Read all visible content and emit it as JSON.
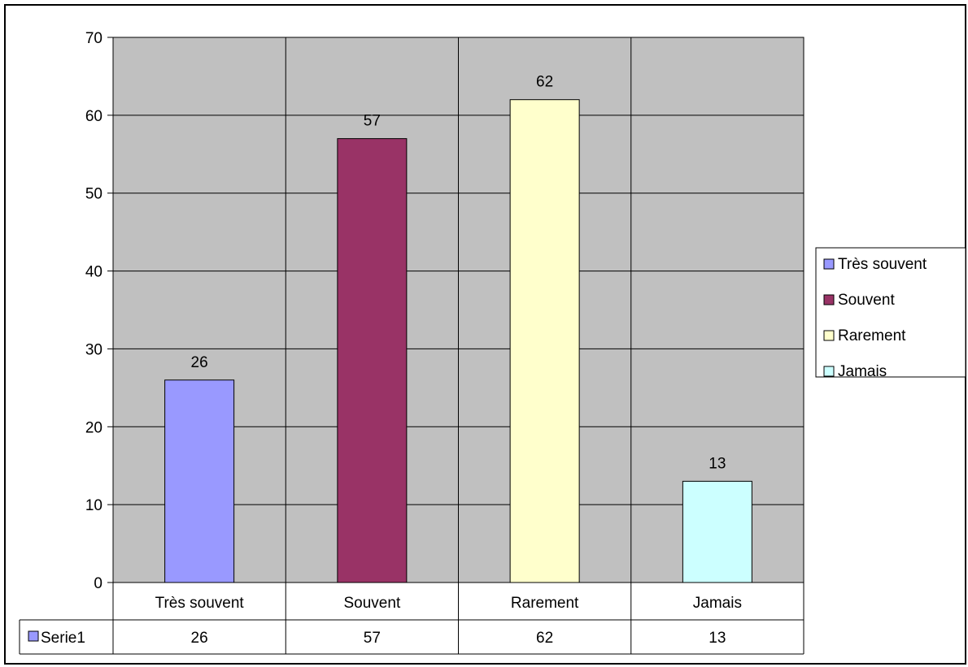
{
  "chart_data": {
    "type": "bar",
    "categories": [
      "Très souvent",
      "Souvent",
      "Rarement",
      "Jamais"
    ],
    "series": [
      {
        "name": "Serie1",
        "values": [
          26,
          57,
          62,
          13
        ],
        "colors": [
          "#9999ff",
          "#993366",
          "#ffffcc",
          "#ccffff"
        ]
      }
    ],
    "ylim": [
      0,
      70
    ],
    "yticks": [
      0,
      10,
      20,
      30,
      40,
      50,
      60,
      70
    ],
    "grid": true,
    "legend_position": "right",
    "data_table": true,
    "plot_background": "#c0c0c0"
  }
}
